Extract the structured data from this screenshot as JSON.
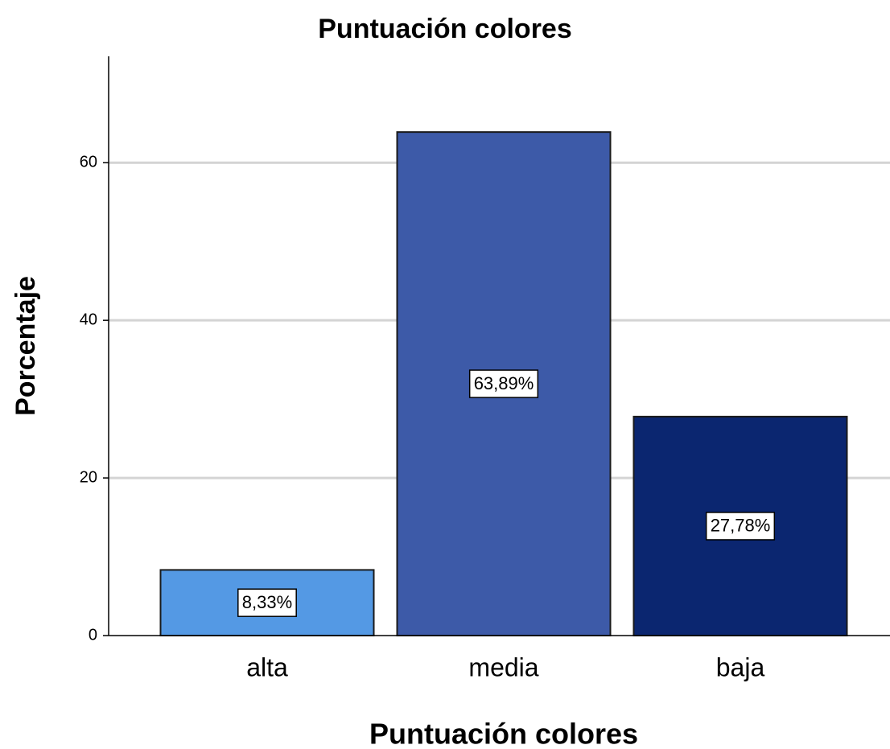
{
  "chart_data": {
    "type": "bar",
    "title": "Puntuación colores",
    "x_label": "Puntuación colores",
    "y_label": "Porcentaje",
    "categories": [
      "alta",
      "media",
      "baja"
    ],
    "values": [
      8.33,
      63.89,
      27.78
    ],
    "value_labels": [
      "8,33%",
      "63,89%",
      "27,78%"
    ],
    "colors": [
      "#5499e4",
      "#3d5aa8",
      "#0b2670"
    ],
    "ylim": [
      0,
      73.5
    ],
    "yticks": [
      0,
      20,
      40,
      60
    ],
    "grid": true
  }
}
